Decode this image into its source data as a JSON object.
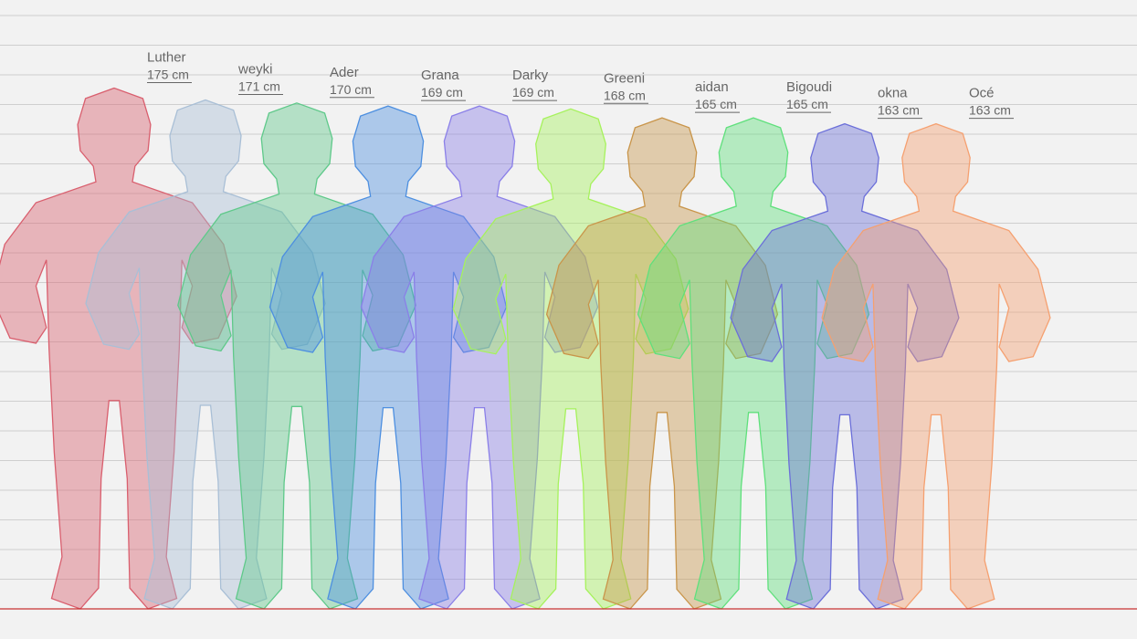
{
  "chart_data": {
    "type": "bar",
    "title": "",
    "xlabel": "",
    "ylabel": "",
    "unit": "cm",
    "baseline_color": "#c83232",
    "grid": true,
    "categories": [
      "Luther",
      "weyki",
      "Ader",
      "Grana",
      "Darky",
      "Greeni",
      "aidan",
      "Bigoudi",
      "okna",
      "Océ"
    ],
    "values": [
      175,
      171,
      170,
      169,
      169,
      168,
      165,
      165,
      163,
      163
    ],
    "value_labels": [
      "175 cm",
      "171 cm",
      "170 cm",
      "169 cm",
      "169 cm",
      "168 cm",
      "165 cm",
      "165 cm",
      "163 cm",
      "163 cm"
    ],
    "colors": [
      "#d95f6e",
      "#a9bfd6",
      "#5fc98a",
      "#4d8fe0",
      "#8a7fe8",
      "#a6f25c",
      "#c9954a",
      "#5fe07c",
      "#6b6fd9",
      "#f5a070"
    ]
  }
}
